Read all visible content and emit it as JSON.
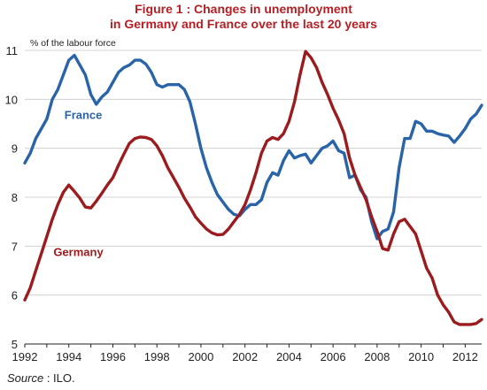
{
  "title_line1": "Figure 1 : Changes in unemployment",
  "title_line2": "in Germany and France over the last 20 years",
  "source_label": "Source",
  "source_text": " : ILO.",
  "chart_data": {
    "type": "line",
    "ylabel": "% of the labour force",
    "xlabel": "",
    "xlim": [
      1992,
      2012.75
    ],
    "ylim": [
      5,
      11
    ],
    "x_ticks": [
      1992,
      1994,
      1996,
      1998,
      2000,
      2002,
      2004,
      2006,
      2008,
      2010,
      2012
    ],
    "x_tick_labels": [
      "1992",
      "1994",
      "1996",
      "1998",
      "2000",
      "2002",
      "2004",
      "2006",
      "2008",
      "2010",
      "2012"
    ],
    "y_ticks": [
      5,
      6,
      7,
      8,
      9,
      10,
      11
    ],
    "y_tick_labels": [
      "5",
      "6",
      "7",
      "8",
      "9",
      "10",
      "11"
    ],
    "grid": true,
    "series": [
      {
        "name": "France",
        "color": "#2a64a8",
        "label_at": [
          1993.8,
          9.6
        ],
        "x": [
          1992.0,
          1992.25,
          1992.5,
          1992.75,
          1993.0,
          1993.25,
          1993.5,
          1993.75,
          1994.0,
          1994.25,
          1994.5,
          1994.75,
          1995.0,
          1995.25,
          1995.5,
          1995.75,
          1996.0,
          1996.25,
          1996.5,
          1996.75,
          1997.0,
          1997.25,
          1997.5,
          1997.75,
          1998.0,
          1998.25,
          1998.5,
          1998.75,
          1999.0,
          1999.25,
          1999.5,
          1999.75,
          2000.0,
          2000.25,
          2000.5,
          2000.75,
          2001.0,
          2001.25,
          2001.5,
          2001.75,
          2002.0,
          2002.25,
          2002.5,
          2002.75,
          2003.0,
          2003.25,
          2003.5,
          2003.75,
          2004.0,
          2004.25,
          2004.5,
          2004.75,
          2005.0,
          2005.25,
          2005.5,
          2005.75,
          2006.0,
          2006.25,
          2006.5,
          2006.75,
          2007.0,
          2007.25,
          2007.5,
          2007.75,
          2008.0,
          2008.25,
          2008.5,
          2008.75,
          2009.0,
          2009.25,
          2009.5,
          2009.75,
          2010.0,
          2010.25,
          2010.5,
          2010.75,
          2011.0,
          2011.25,
          2011.5,
          2011.75,
          2012.0,
          2012.25,
          2012.5,
          2012.75
        ],
        "values": [
          8.7,
          8.9,
          9.2,
          9.4,
          9.6,
          10.0,
          10.2,
          10.5,
          10.8,
          10.9,
          10.7,
          10.5,
          10.1,
          9.9,
          10.05,
          10.15,
          10.35,
          10.55,
          10.65,
          10.7,
          10.8,
          10.8,
          10.72,
          10.55,
          10.3,
          10.25,
          10.3,
          10.3,
          10.3,
          10.2,
          9.95,
          9.5,
          9.0,
          8.6,
          8.3,
          8.05,
          7.9,
          7.75,
          7.65,
          7.62,
          7.75,
          7.85,
          7.85,
          7.95,
          8.3,
          8.5,
          8.45,
          8.75,
          8.95,
          8.8,
          8.85,
          8.88,
          8.7,
          8.85,
          9.0,
          9.05,
          9.15,
          8.95,
          8.9,
          8.4,
          8.45,
          8.15,
          8.0,
          7.5,
          7.15,
          7.3,
          7.35,
          7.7,
          8.6,
          9.2,
          9.2,
          9.55,
          9.5,
          9.35,
          9.35,
          9.3,
          9.27,
          9.25,
          9.12,
          9.25,
          9.4,
          9.6,
          9.7,
          9.88
        ]
      },
      {
        "name": "Germany",
        "color": "#9b1b1e",
        "label_at": [
          1993.3,
          6.8
        ],
        "x": [
          1992.0,
          1992.25,
          1992.5,
          1992.75,
          1993.0,
          1993.25,
          1993.5,
          1993.75,
          1994.0,
          1994.25,
          1994.5,
          1994.75,
          1995.0,
          1995.25,
          1995.5,
          1995.75,
          1996.0,
          1996.25,
          1996.5,
          1996.75,
          1997.0,
          1997.25,
          1997.5,
          1997.75,
          1998.0,
          1998.25,
          1998.5,
          1998.75,
          1999.0,
          1999.25,
          1999.5,
          1999.75,
          2000.0,
          2000.25,
          2000.5,
          2000.75,
          2001.0,
          2001.25,
          2001.5,
          2001.75,
          2002.0,
          2002.25,
          2002.5,
          2002.75,
          2003.0,
          2003.25,
          2003.5,
          2003.75,
          2004.0,
          2004.25,
          2004.5,
          2004.75,
          2005.0,
          2005.25,
          2005.5,
          2005.75,
          2006.0,
          2006.25,
          2006.5,
          2006.75,
          2007.0,
          2007.25,
          2007.5,
          2007.75,
          2008.0,
          2008.25,
          2008.5,
          2008.75,
          2009.0,
          2009.25,
          2009.5,
          2009.75,
          2010.0,
          2010.25,
          2010.5,
          2010.75,
          2011.0,
          2011.25,
          2011.5,
          2011.75,
          2012.0,
          2012.25,
          2012.5,
          2012.75
        ],
        "values": [
          5.9,
          6.15,
          6.5,
          6.85,
          7.2,
          7.55,
          7.85,
          8.1,
          8.25,
          8.12,
          7.98,
          7.8,
          7.78,
          7.92,
          8.08,
          8.25,
          8.4,
          8.65,
          8.88,
          9.1,
          9.2,
          9.23,
          9.22,
          9.18,
          9.05,
          8.85,
          8.6,
          8.4,
          8.2,
          7.98,
          7.8,
          7.6,
          7.47,
          7.35,
          7.27,
          7.23,
          7.24,
          7.35,
          7.5,
          7.65,
          7.85,
          8.15,
          8.5,
          8.9,
          9.15,
          9.22,
          9.18,
          9.3,
          9.55,
          9.95,
          10.5,
          10.98,
          10.85,
          10.65,
          10.35,
          10.1,
          9.82,
          9.58,
          9.3,
          8.8,
          8.45,
          8.2,
          7.95,
          7.6,
          7.3,
          6.95,
          6.92,
          7.25,
          7.5,
          7.55,
          7.4,
          7.25,
          6.9,
          6.55,
          6.35,
          6.0,
          5.8,
          5.65,
          5.45,
          5.4,
          5.4,
          5.4,
          5.42,
          5.5
        ]
      }
    ]
  }
}
